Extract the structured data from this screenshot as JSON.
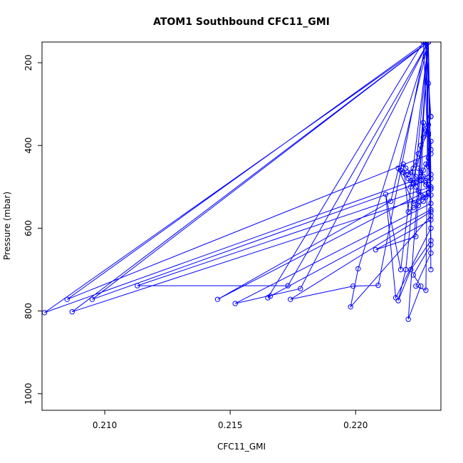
{
  "chart_data": {
    "type": "line",
    "title": "ATOM1 Southbound CFC11_GMI",
    "xlabel": "CFC11_GMI",
    "ylabel": "Pressure (mbar)",
    "xlim": [
      0.2075,
      0.2234
    ],
    "ylim": [
      1040,
      150
    ],
    "y_reversed": true,
    "x_ticks": [
      0.21,
      0.215,
      0.22
    ],
    "x_tick_labels": [
      "0.210",
      "0.215",
      "0.220"
    ],
    "y_ticks": [
      200,
      400,
      600,
      800,
      1000
    ],
    "y_tick_labels": [
      "200",
      "400",
      "600",
      "800",
      "1000"
    ],
    "grid": false,
    "legend": "none",
    "color": "#0000ff",
    "series": [
      {
        "x": [
          0.2228,
          0.2229,
          0.223,
          0.2228,
          0.2229,
          0.223,
          0.2085,
          0.2228,
          0.2229,
          0.223,
          0.2087,
          0.2229,
          0.223,
          0.2095,
          0.2229,
          0.223,
          0.2076,
          0.2229,
          0.223,
          0.2113,
          0.2173,
          0.2229,
          0.223,
          0.2145,
          0.2214,
          0.2229,
          0.223,
          0.2152,
          0.2178,
          0.2229,
          0.223,
          0.2166,
          0.2165,
          0.2227,
          0.223,
          0.2174,
          0.2199,
          0.2209,
          0.2228,
          0.223,
          0.2198,
          0.2201,
          0.2229,
          0.223,
          0.2208,
          0.2224,
          0.2229,
          0.223,
          0.2216,
          0.2212,
          0.2218,
          0.2229,
          0.223,
          0.2222,
          0.2217,
          0.222,
          0.2229,
          0.223,
          0.2223,
          0.2226,
          0.2221,
          0.2229,
          0.223,
          0.2224,
          0.2228,
          0.2229,
          0.223
        ],
        "y": [
          150,
          250,
          330,
          150,
          370,
          420,
          772,
          150,
          450,
          520,
          802,
          150,
          480,
          772,
          150,
          470,
          804,
          150,
          500,
          739,
          739,
          150,
          505,
          772,
          535,
          150,
          540,
          782,
          746,
          150,
          555,
          764,
          768,
          150,
          560,
          772,
          740,
          738,
          150,
          570,
          790,
          698,
          150,
          580,
          652,
          620,
          150,
          600,
          768,
          518,
          700,
          150,
          630,
          700,
          775,
          700,
          150,
          640,
          713,
          740,
          820,
          150,
          660,
          740,
          750,
          150,
          700
        ]
      },
      {
        "x": [
          0.2221,
          0.2223,
          0.2224,
          0.2225,
          0.2226,
          0.2227,
          0.2228,
          0.2229,
          0.223,
          0.2222,
          0.2224,
          0.2226,
          0.2227,
          0.2228,
          0.2229,
          0.223,
          0.223,
          0.2229,
          0.2228,
          0.2227,
          0.2226,
          0.2225,
          0.2224,
          0.2223,
          0.2222,
          0.2221,
          0.222,
          0.2219,
          0.2218,
          0.2217,
          0.2223,
          0.2225,
          0.2227,
          0.2229,
          0.223,
          0.2228,
          0.2226,
          0.2224,
          0.2222,
          0.222,
          0.2219,
          0.2221,
          0.2223,
          0.2225,
          0.2227,
          0.2228,
          0.2229,
          0.223,
          0.2229,
          0.2228,
          0.2227,
          0.2226,
          0.2225
        ],
        "y": [
          470,
          455,
          440,
          420,
          400,
          380,
          365,
          350,
          330,
          500,
          490,
          475,
          460,
          445,
          430,
          410,
          390,
          375,
          360,
          345,
          520,
          510,
          500,
          490,
          485,
          480,
          470,
          465,
          460,
          455,
          540,
          535,
          525,
          515,
          505,
          495,
          485,
          475,
          465,
          455,
          445,
          560,
          550,
          545,
          535,
          525,
          515,
          505,
          495,
          485,
          475,
          465,
          455
        ]
      }
    ]
  }
}
